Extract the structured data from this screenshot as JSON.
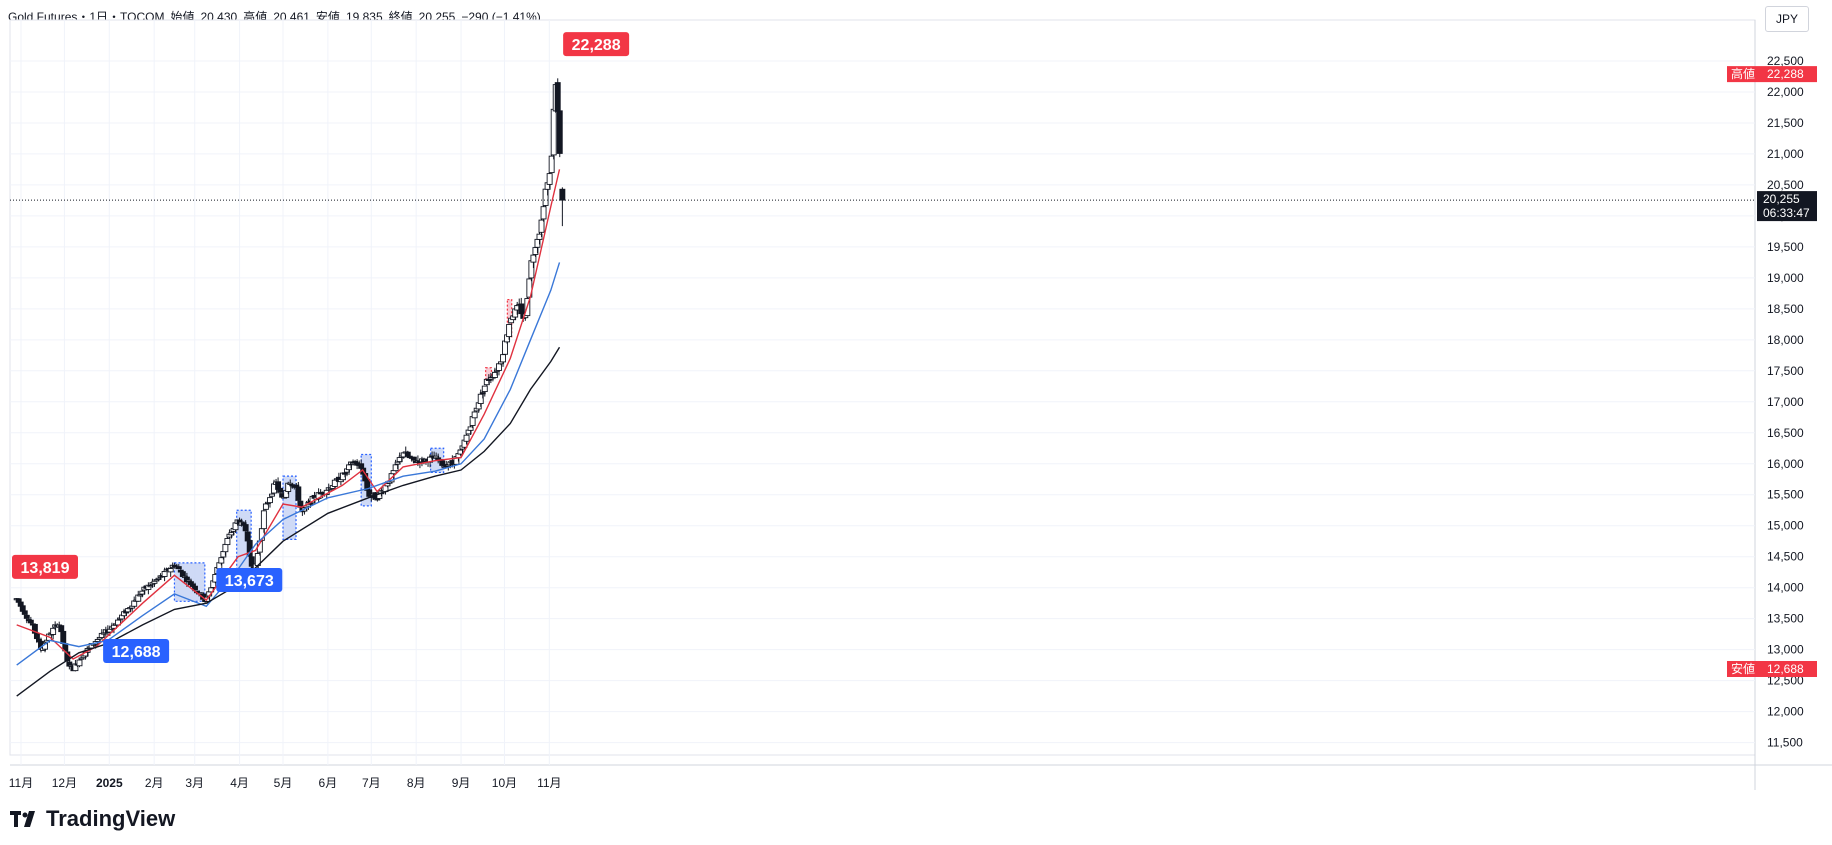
{
  "header": {
    "symbol": "Gold Futures・1日・TOCOM",
    "open_label": "始値",
    "open": "20,430",
    "high_label": "高値",
    "high": "20,461",
    "low_label": "安値",
    "low": "19,835",
    "close_label": "終値",
    "close": "20,255",
    "change": "−290 (−1.41%)"
  },
  "currency": "JPY",
  "brand": "TradingView",
  "colors": {
    "up": "#ffffff",
    "down": "#131722",
    "ma_short": "#e0313f",
    "ma_mid": "#3a78d8",
    "ma_long": "#131722",
    "callout_red": "#f23645",
    "callout_blue": "#2962ff",
    "box_blue": "#c7d3f5",
    "box_red": "#f5c2cc"
  },
  "chart_data": {
    "type": "candlestick",
    "title": "Gold Futures・1日・TOCOM",
    "ylim": [
      11300,
      23000
    ],
    "yticks": [
      11500,
      12000,
      12500,
      13000,
      13500,
      14000,
      14500,
      15000,
      15500,
      16000,
      16500,
      17000,
      17500,
      18000,
      18500,
      19000,
      19500,
      20000,
      20500,
      21000,
      21500,
      22000,
      22500
    ],
    "ytick_labels": [
      "11,500",
      "12,000",
      "12,500",
      "13,000",
      "13,500",
      "14,000",
      "14,500",
      "15,000",
      "15,500",
      "16,000",
      "16,500",
      "17,000",
      "17,500",
      "18,000",
      "18,500",
      "19,000",
      "19,500",
      "20,000",
      "20,500",
      "21,000",
      "21,500",
      "22,000",
      "22,500"
    ],
    "xticks": [
      {
        "day": 0,
        "label": "11月"
      },
      {
        "day": 30,
        "label": "12月"
      },
      {
        "day": 61,
        "label": "2025"
      },
      {
        "day": 92,
        "label": "2月"
      },
      {
        "day": 120,
        "label": "3月"
      },
      {
        "day": 151,
        "label": "4月"
      },
      {
        "day": 181,
        "label": "5月"
      },
      {
        "day": 212,
        "label": "6月"
      },
      {
        "day": 242,
        "label": "7月"
      },
      {
        "day": 273,
        "label": "8月"
      },
      {
        "day": 304,
        "label": "9月"
      },
      {
        "day": 334,
        "label": "10月"
      },
      {
        "day": 365,
        "label": "11月"
      }
    ],
    "price_path": [
      [
        -3,
        13819
      ],
      [
        0,
        13700
      ],
      [
        8,
        13380
      ],
      [
        14,
        13000
      ],
      [
        20,
        13250
      ],
      [
        26,
        13450
      ],
      [
        32,
        12800
      ],
      [
        36,
        12688
      ],
      [
        42,
        12900
      ],
      [
        52,
        13150
      ],
      [
        62,
        13350
      ],
      [
        72,
        13600
      ],
      [
        84,
        13950
      ],
      [
        98,
        14200
      ],
      [
        106,
        14380
      ],
      [
        114,
        14150
      ],
      [
        122,
        13950
      ],
      [
        128,
        13780
      ],
      [
        134,
        14200
      ],
      [
        142,
        14750
      ],
      [
        150,
        15100
      ],
      [
        156,
        14900
      ],
      [
        160,
        14200
      ],
      [
        163,
        14450
      ],
      [
        168,
        15250
      ],
      [
        176,
        15700
      ],
      [
        181,
        15400
      ],
      [
        185,
        15750
      ],
      [
        190,
        15600
      ],
      [
        194,
        15200
      ],
      [
        202,
        15450
      ],
      [
        212,
        15600
      ],
      [
        222,
        15800
      ],
      [
        230,
        16050
      ],
      [
        236,
        15900
      ],
      [
        240,
        15500
      ],
      [
        246,
        15450
      ],
      [
        256,
        15800
      ],
      [
        264,
        16200
      ],
      [
        270,
        16050
      ],
      [
        278,
        16050
      ],
      [
        286,
        16100
      ],
      [
        292,
        15980
      ],
      [
        298,
        16000
      ],
      [
        304,
        16200
      ],
      [
        310,
        16600
      ],
      [
        316,
        17000
      ],
      [
        322,
        17350
      ],
      [
        328,
        17500
      ],
      [
        332,
        17700
      ],
      [
        338,
        18350
      ],
      [
        344,
        18550
      ],
      [
        348,
        18300
      ],
      [
        352,
        19200
      ],
      [
        356,
        19600
      ],
      [
        359,
        19800
      ],
      [
        362,
        20400
      ],
      [
        365,
        20600
      ],
      [
        367,
        21100
      ],
      [
        369,
        22288
      ],
      [
        371,
        21600
      ],
      [
        373,
        20600
      ],
      [
        374,
        20255
      ]
    ],
    "candles_last": [
      {
        "open": 20430,
        "high": 20461,
        "low": 19835,
        "close": 20255
      }
    ],
    "moving_averages": [
      {
        "name": "MA short",
        "color": "#e0313f",
        "points": [
          [
            -3,
            13400
          ],
          [
            20,
            13200
          ],
          [
            36,
            12850
          ],
          [
            52,
            13050
          ],
          [
            84,
            13750
          ],
          [
            106,
            14200
          ],
          [
            128,
            13800
          ],
          [
            150,
            14500
          ],
          [
            162,
            14600
          ],
          [
            181,
            15350
          ],
          [
            194,
            15300
          ],
          [
            222,
            15650
          ],
          [
            236,
            15900
          ],
          [
            246,
            15550
          ],
          [
            264,
            15950
          ],
          [
            286,
            16050
          ],
          [
            304,
            16100
          ],
          [
            320,
            16800
          ],
          [
            338,
            17700
          ],
          [
            352,
            18700
          ],
          [
            366,
            20150
          ],
          [
            372,
            20750
          ]
        ]
      },
      {
        "name": "MA mid",
        "color": "#3a78d8",
        "points": [
          [
            -3,
            12750
          ],
          [
            20,
            13150
          ],
          [
            40,
            13050
          ],
          [
            60,
            13150
          ],
          [
            84,
            13550
          ],
          [
            106,
            13900
          ],
          [
            128,
            13700
          ],
          [
            150,
            14300
          ],
          [
            162,
            14700
          ],
          [
            181,
            15100
          ],
          [
            212,
            15450
          ],
          [
            240,
            15600
          ],
          [
            264,
            15800
          ],
          [
            286,
            15880
          ],
          [
            304,
            16000
          ],
          [
            320,
            16400
          ],
          [
            338,
            17200
          ],
          [
            352,
            18000
          ],
          [
            366,
            18800
          ],
          [
            372,
            19250
          ]
        ]
      },
      {
        "name": "MA long",
        "color": "#131722",
        "points": [
          [
            -3,
            12250
          ],
          [
            20,
            12650
          ],
          [
            40,
            12950
          ],
          [
            60,
            13100
          ],
          [
            84,
            13400
          ],
          [
            106,
            13650
          ],
          [
            128,
            13750
          ],
          [
            150,
            14050
          ],
          [
            181,
            14750
          ],
          [
            212,
            15200
          ],
          [
            240,
            15450
          ],
          [
            264,
            15650
          ],
          [
            286,
            15800
          ],
          [
            304,
            15900
          ],
          [
            320,
            16200
          ],
          [
            338,
            16650
          ],
          [
            352,
            17200
          ],
          [
            366,
            17650
          ],
          [
            372,
            17880
          ]
        ]
      }
    ],
    "highlight_boxes": [
      {
        "x0": 106,
        "x1": 127,
        "y0": 13780,
        "y1": 14400,
        "color": "blue"
      },
      {
        "x0": 149,
        "x1": 159,
        "y0": 14100,
        "y1": 15250,
        "color": "blue"
      },
      {
        "x0": 181,
        "x1": 190,
        "y0": 14780,
        "y1": 15800,
        "color": "blue"
      },
      {
        "x0": 235,
        "x1": 242,
        "y0": 15320,
        "y1": 16150,
        "color": "blue"
      },
      {
        "x0": 283,
        "x1": 292,
        "y0": 15860,
        "y1": 16250,
        "color": "blue"
      },
      {
        "x0": 321,
        "x1": 325,
        "y0": 17350,
        "y1": 17550,
        "color": "red"
      },
      {
        "x0": 336,
        "x1": 339,
        "y0": 18050,
        "y1": 18650,
        "color": "red"
      }
    ],
    "callouts": [
      {
        "label": "13,819",
        "day": -3,
        "value": 13819,
        "color": "red"
      },
      {
        "label": "12,688",
        "day": 36,
        "value": 12688,
        "color": "blue"
      },
      {
        "label": "13,673",
        "day": 128,
        "value": 13673,
        "color": "blue"
      },
      {
        "label": "22,288",
        "day": 369,
        "value": 22288,
        "color": "red"
      }
    ],
    "price_labels": [
      {
        "tag": "高値",
        "value": "22,288",
        "num": 22288
      },
      {
        "tag": "安値",
        "value": "12,688",
        "num": 12688
      }
    ],
    "current_price": {
      "value": "20,255",
      "num": 20255,
      "countdown": "06:33:47"
    }
  }
}
